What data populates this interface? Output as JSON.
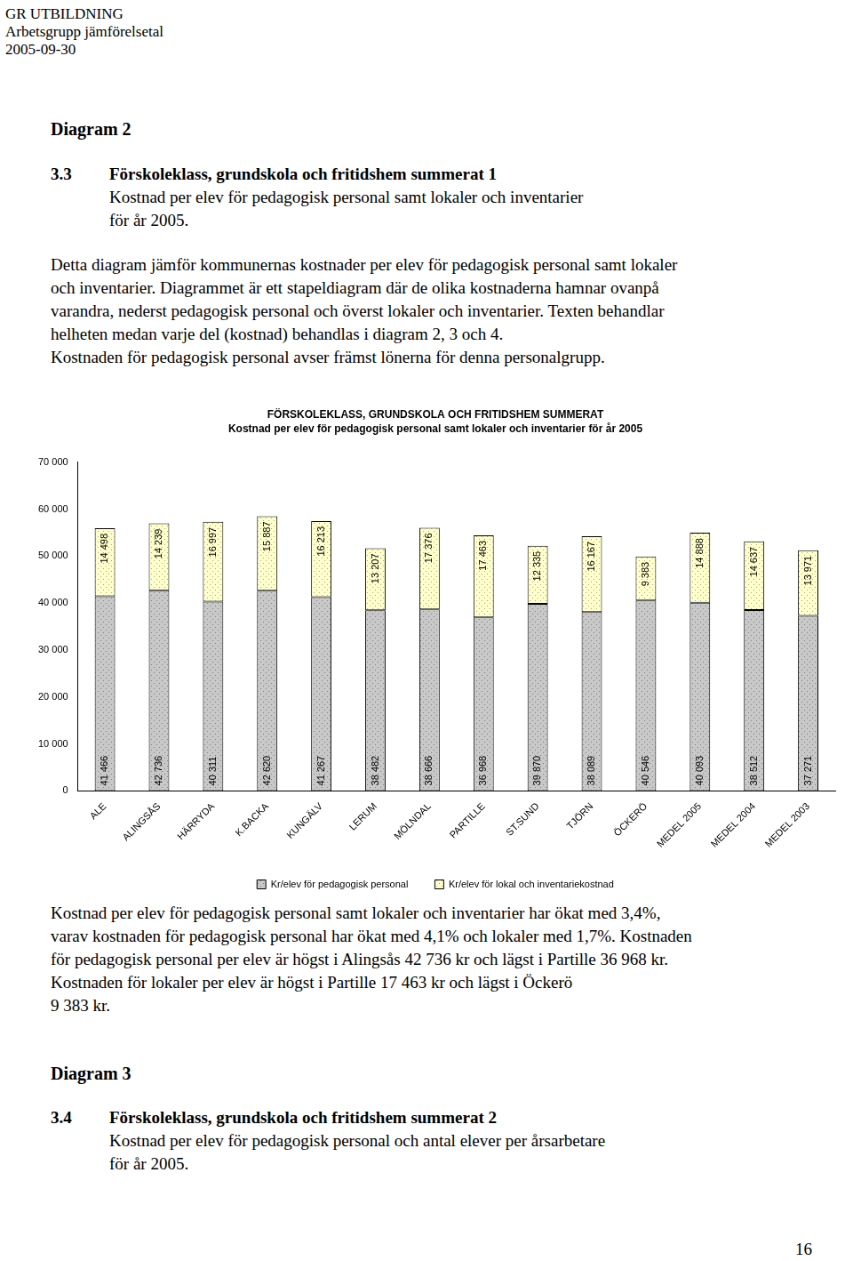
{
  "header": [
    "GR UTBILDNING",
    "Arbetsgrupp jämförelsetal",
    "2005-09-30"
  ],
  "diagram_label_1": "Diagram 2",
  "section_1": {
    "number": "3.3",
    "title": "Förskoleklass, grundskola och fritidshem summerat 1",
    "subtitle_lines": [
      "Kostnad per elev för pedagogisk personal samt lokaler och inventarier",
      "för år 2005."
    ]
  },
  "intro_lines": [
    "Detta diagram jämför kommunernas kostnader per elev för pedagogisk personal samt lokaler",
    "och inventarier. Diagrammet är ett stapeldiagram där de olika kostnaderna hamnar ovanpå",
    "varandra, nederst pedagogisk personal och överst lokaler och inventarier. Texten behandlar",
    "helheten medan varje del (kostnad) behandlas i diagram 2, 3 och 4.",
    "Kostnaden för pedagogisk personal avser främst lönerna för denna personalgrupp."
  ],
  "chart_data": {
    "type": "bar",
    "stacked": true,
    "data_labels": true,
    "grid": false,
    "legend": "bottom",
    "title": "FÖRSKOLEKLASS, GRUNDSKOLA OCH FRITIDSHEM SUMMERAT",
    "subtitle": "Kostnad per elev för pedagogisk personal samt lokaler och inventarier för år 2005",
    "categories": [
      "ALE",
      "ALINGSÅS",
      "HÄRRYDA",
      "K.BACKA",
      "KUNGÄLV",
      "LERUM",
      "MÖLNDAL",
      "PARTILLE",
      "ST.SUND",
      "TJÖRN",
      "ÖCKERÖ",
      "MEDEL 2005",
      "MEDEL 2004",
      "MEDEL 2003"
    ],
    "series": [
      {
        "name": "Kr/elev för pedagogisk personal",
        "color": "#c8c8c8",
        "values": [
          41466,
          42736,
          40311,
          42620,
          41267,
          38482,
          38666,
          36968,
          39870,
          38089,
          40546,
          40093,
          38512,
          37271
        ],
        "value_labels": [
          "41 466",
          "42 736",
          "40 311",
          "42 620",
          "41 267",
          "38 482",
          "38 666",
          "36 968",
          "39 870",
          "38 089",
          "40 546",
          "40 093",
          "38 512",
          "37 271"
        ]
      },
      {
        "name": "Kr/elev för lokal och inventariekostnad",
        "color": "#ffffcc",
        "values": [
          14498,
          14239,
          16997,
          15887,
          16213,
          13207,
          17376,
          17463,
          12335,
          16167,
          9383,
          14888,
          14637,
          13971
        ],
        "value_labels": [
          "14 498",
          "14 239",
          "16 997",
          "15 887",
          "16 213",
          "13 207",
          "17 376",
          "17 463",
          "12 335",
          "16 167",
          "9 383",
          "14 888",
          "14 637",
          "13 971"
        ]
      }
    ],
    "ylim": [
      0,
      70000
    ],
    "yticks": [
      0,
      {
        "value": 10000,
        "label": "10 000"
      },
      {
        "value": 20000,
        "label": "20 000"
      },
      {
        "value": 30000,
        "label": "30 000"
      },
      {
        "value": 40000,
        "label": "40 000"
      },
      {
        "value": 50000,
        "label": "50 000"
      },
      {
        "value": 60000,
        "label": "60 000"
      },
      {
        "value": 70000,
        "label": "70 000"
      }
    ]
  },
  "summary_lines": [
    "Kostnad per elev för pedagogisk personal samt lokaler och inventarier har ökat med 3,4%,",
    "varav kostnaden för pedagogisk personal har ökat med 4,1% och lokaler med 1,7%. Kostnaden",
    "för pedagogisk personal per elev är högst i Alingsås 42 736 kr och lägst i Partille 36 968 kr.",
    "Kostnaden för lokaler per elev är högst i Partille 17 463 kr och lägst i Öckerö",
    "9 383 kr."
  ],
  "diagram_label_2": "Diagram 3",
  "section_2": {
    "number": "3.4",
    "title": "Förskoleklass, grundskola och fritidshem summerat 2",
    "subtitle_lines": [
      "Kostnad per elev för pedagogisk personal och antal elever per årsarbetare",
      "för år 2005."
    ]
  },
  "page_number": "16"
}
